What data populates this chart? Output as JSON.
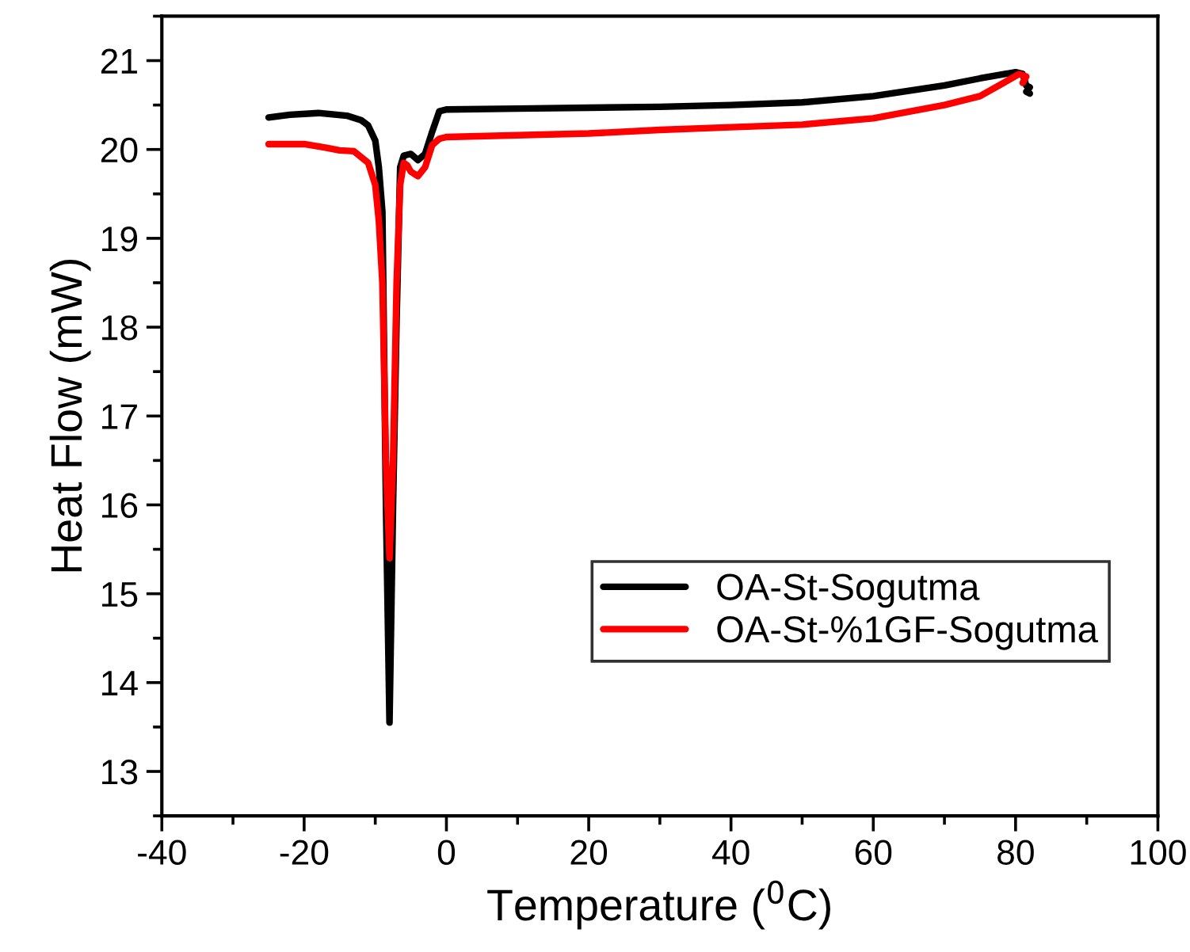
{
  "chart_data": {
    "type": "line",
    "xlabel": "Temperature ($^{0}$C)",
    "ylabel": "Heat Flow (mW)",
    "xlim": [
      -40,
      100
    ],
    "xticks": [
      -40,
      -20,
      0,
      20,
      40,
      60,
      80,
      100
    ],
    "ylim": [
      12.5,
      21.5
    ],
    "yticks": [
      13,
      14,
      15,
      16,
      17,
      18,
      19,
      20,
      21
    ],
    "legend": "bottom right",
    "series": [
      {
        "name": "OA-St-Sogutma",
        "color": "#000000",
        "x": [
          -25,
          -22,
          -18,
          -14,
          -12,
          -11,
          -10,
          -9.5,
          -9,
          -8.5,
          -8,
          -7.5,
          -7,
          -6.5,
          -6,
          -5,
          -4,
          -3,
          -2,
          -1,
          0,
          10,
          20,
          30,
          40,
          50,
          60,
          70,
          75,
          80,
          81,
          81.5,
          82,
          81.5,
          82
        ],
        "values": [
          20.36,
          20.39,
          20.41,
          20.38,
          20.33,
          20.27,
          20.1,
          19.8,
          19.3,
          16.0,
          13.55,
          16.0,
          18.1,
          19.8,
          19.93,
          19.95,
          19.88,
          19.95,
          20.2,
          20.43,
          20.45,
          20.46,
          20.47,
          20.48,
          20.5,
          20.53,
          20.6,
          20.72,
          20.8,
          20.87,
          20.85,
          20.72,
          20.7,
          20.65,
          20.63
        ]
      },
      {
        "name": "OA-St-%1GF-Sogutma",
        "color": "#ff0000",
        "x": [
          -25,
          -20,
          -17,
          -15,
          -13,
          -11,
          -10,
          -9.5,
          -9,
          -8.5,
          -8,
          -7.5,
          -7,
          -6.5,
          -6,
          -5.5,
          -5,
          -4,
          -3,
          -2,
          -1,
          0,
          10,
          20,
          30,
          40,
          50,
          60,
          70,
          75,
          79,
          80.5,
          81.5,
          81
        ],
        "values": [
          20.06,
          20.06,
          20.02,
          19.99,
          19.98,
          19.85,
          19.6,
          19.2,
          18.5,
          16.5,
          15.4,
          16.5,
          18.5,
          19.6,
          19.85,
          19.82,
          19.75,
          19.7,
          19.8,
          20.05,
          20.12,
          20.14,
          20.16,
          20.18,
          20.22,
          20.25,
          20.28,
          20.35,
          20.5,
          20.6,
          20.78,
          20.85,
          20.82,
          20.75
        ]
      }
    ]
  }
}
